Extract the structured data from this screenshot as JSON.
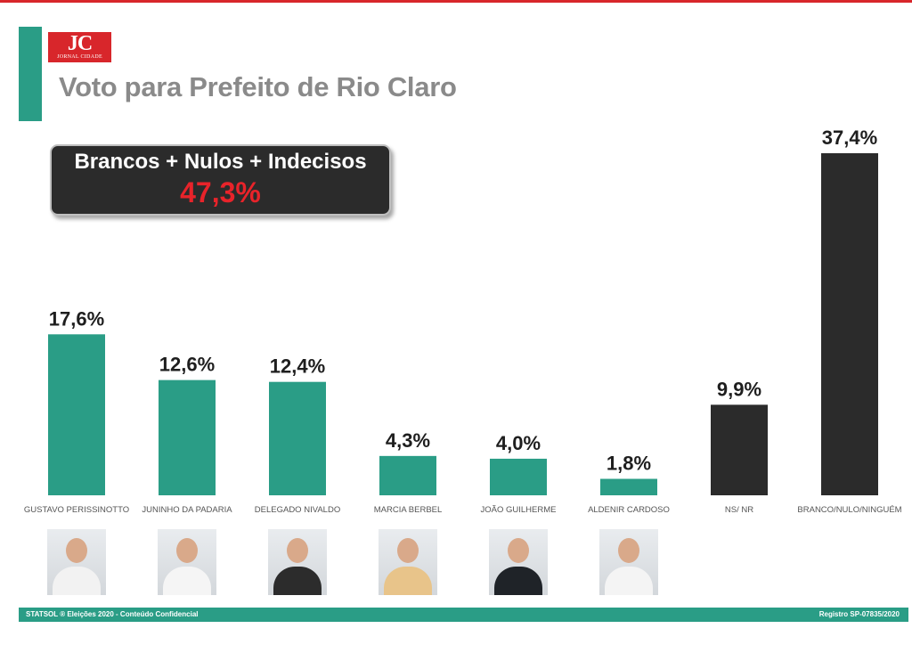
{
  "logo": {
    "text": "JC",
    "subtext": "JORNAL CIDADE"
  },
  "title": "Voto para Prefeito de Rio Claro",
  "summary": {
    "label": "Brancos + Nulos + Indecisos",
    "value": "47,3%"
  },
  "colors": {
    "accent": "#2a9d86",
    "dark": "#2b2b2b",
    "highlight": "#e8232a",
    "title": "#8a8a8a"
  },
  "chart_data": {
    "type": "bar",
    "title": "Voto para Prefeito de Rio Claro",
    "categories": [
      "GUSTAVO PERISSINOTTO",
      "JUNINHO DA PADARIA",
      "DELEGADO NIVALDO",
      "MARCIA BERBEL",
      "JOÃO GUILHERME",
      "ALDENIR CARDOSO",
      "NS/ NR",
      "BRANCO/NULO/NINGUÉM"
    ],
    "values": [
      17.6,
      12.6,
      12.4,
      4.3,
      4.0,
      1.8,
      9.9,
      37.4
    ],
    "value_labels": [
      "17,6%",
      "12,6%",
      "12,4%",
      "4,3%",
      "4,0%",
      "1,8%",
      "9,9%",
      "37,4%"
    ],
    "bar_colors": [
      "#2a9d86",
      "#2a9d86",
      "#2a9d86",
      "#2a9d86",
      "#2a9d86",
      "#2a9d86",
      "#2b2b2b",
      "#2b2b2b"
    ],
    "xlabel": "",
    "ylabel": "",
    "ylim": [
      0,
      40
    ],
    "grid": false
  },
  "photos": [
    {
      "name": "gustavo-perissinotto-photo",
      "shirt": "#f2f2f2"
    },
    {
      "name": "juninho-da-padaria-photo",
      "shirt": "#f5f5f5"
    },
    {
      "name": "delegado-nivaldo-photo",
      "shirt": "#2c2c2c"
    },
    {
      "name": "marcia-berbel-photo",
      "shirt": "#e8c48a"
    },
    {
      "name": "joao-guilherme-photo",
      "shirt": "#1f2328"
    },
    {
      "name": "aldenir-cardoso-photo",
      "shirt": "#f4f4f4"
    }
  ],
  "footer": {
    "left": "STATSOL ® Eleições 2020 - Conteúdo Confidencial",
    "right": "Registro SP-07835/2020"
  }
}
